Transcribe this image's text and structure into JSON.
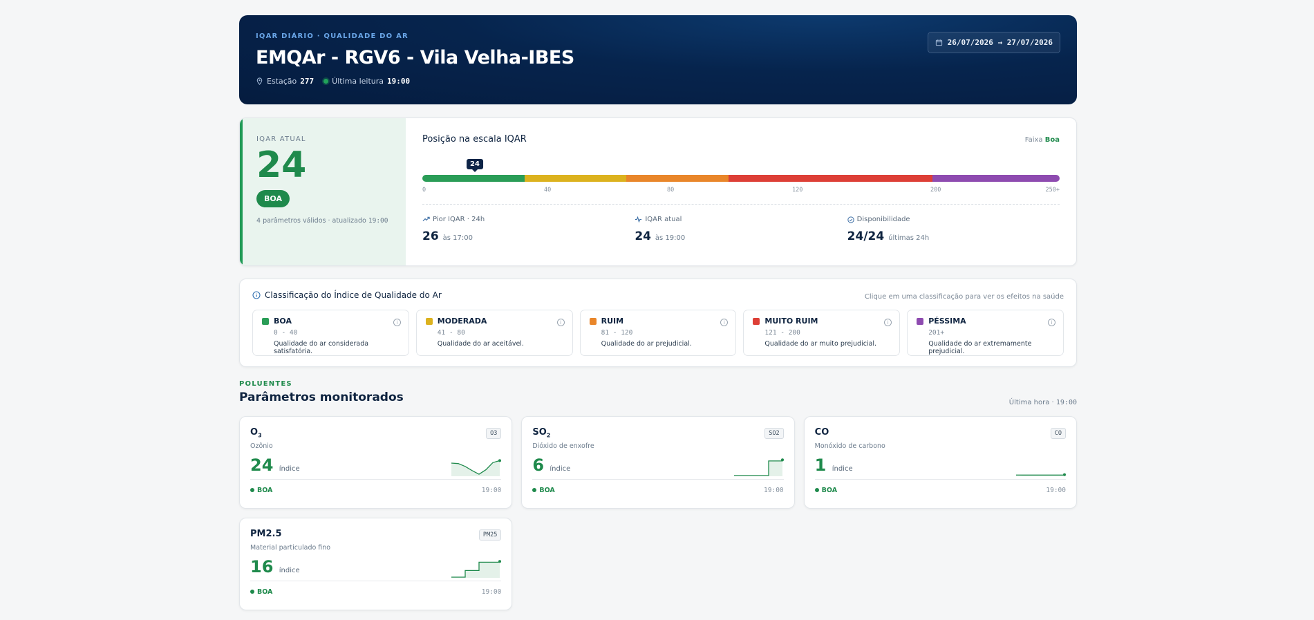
{
  "header": {
    "eyebrow": "IQAR DIÁRIO · QUALIDADE DO AR",
    "title": "EMQAr - RGV6 - Vila Velha-IBES",
    "station_label": "Estação",
    "station_value": "277",
    "last_reading_label": "Última leitura",
    "last_reading_value": "19:00",
    "date_range": "26/07/2026 → 27/07/2026"
  },
  "current": {
    "label": "IQAR ATUAL",
    "value": "24",
    "badge": "BOA",
    "note_prefix": "4 parâmetros válidos · atualizado",
    "note_time": "19:00",
    "scale_title": "Posição na escala IQAR",
    "faixa_label": "Faixa",
    "faixa_value": "Boa",
    "marker": "24",
    "ticks": [
      "0",
      "40",
      "80",
      "120",
      "200",
      "250+"
    ],
    "stats": [
      {
        "label": "Pior IQAR · 24h",
        "value": "26",
        "suffix": "às 17:00"
      },
      {
        "label": "IQAR atual",
        "value": "24",
        "suffix": "às 19:00"
      },
      {
        "label": "Disponibilidade",
        "value": "24/24",
        "suffix": "últimas 24h"
      }
    ]
  },
  "scale_colors": {
    "boa": "#2a9d57",
    "moderada": "#dcb21e",
    "ruim": "#e9862a",
    "muito_ruim": "#dd3f36",
    "pessima": "#8e4bb0"
  },
  "classification": {
    "title": "Classificação do Índice de Qualidade do Ar",
    "hint": "Clique em uma classificação para ver os efeitos na saúde",
    "items": [
      {
        "name": "BOA",
        "range": "0 - 40",
        "desc": "Qualidade do ar considerada satisfatória.",
        "color": "#2a9d57"
      },
      {
        "name": "MODERADA",
        "range": "41 - 80",
        "desc": "Qualidade do ar aceitável.",
        "color": "#dcb21e"
      },
      {
        "name": "RUIM",
        "range": "81 - 120",
        "desc": "Qualidade do ar prejudicial.",
        "color": "#e9862a"
      },
      {
        "name": "MUITO RUIM",
        "range": "121 - 200",
        "desc": "Qualidade do ar muito prejudicial.",
        "color": "#dd3f36"
      },
      {
        "name": "PÉSSIMA",
        "range": "201+",
        "desc": "Qualidade do ar extremamente prejudicial.",
        "color": "#8e4bb0"
      }
    ]
  },
  "pollutants": {
    "eyebrow": "POLUENTES",
    "title": "Parâmetros monitorados",
    "last_hour_label": "Última hora ·",
    "last_hour_time": "19:00",
    "index_label": "índice",
    "items": [
      {
        "symbol": "O",
        "sub": "3",
        "name": "Ozônio",
        "code": "O3",
        "value": "24",
        "status": "BOA",
        "time": "19:00",
        "spark": [
          0.75,
          0.72,
          0.55,
          0.3,
          0.08,
          0.35,
          0.78,
          0.9
        ]
      },
      {
        "symbol": "SO",
        "sub": "2",
        "name": "Dióxido de enxofre",
        "code": "SO2",
        "value": "6",
        "status": "BOA",
        "time": "19:00",
        "spark": [
          0.0,
          0.0,
          0.0,
          0.0,
          0.0,
          0.88,
          0.88,
          0.95
        ]
      },
      {
        "symbol": "CO",
        "sub": "",
        "name": "Monóxido de carbono",
        "code": "CO",
        "value": "1",
        "status": "BOA",
        "time": "19:00",
        "spark": [
          0.03,
          0.03,
          0.03,
          0.03,
          0.03,
          0.03,
          0.03,
          0.05
        ]
      },
      {
        "symbol": "PM2.5",
        "sub": "",
        "name": "Material particulado fino",
        "code": "PM25",
        "value": "16",
        "status": "BOA",
        "time": "19:00",
        "spark": [
          0.0,
          0.0,
          0.4,
          0.4,
          0.9,
          0.9,
          0.9,
          0.95
        ]
      }
    ]
  }
}
